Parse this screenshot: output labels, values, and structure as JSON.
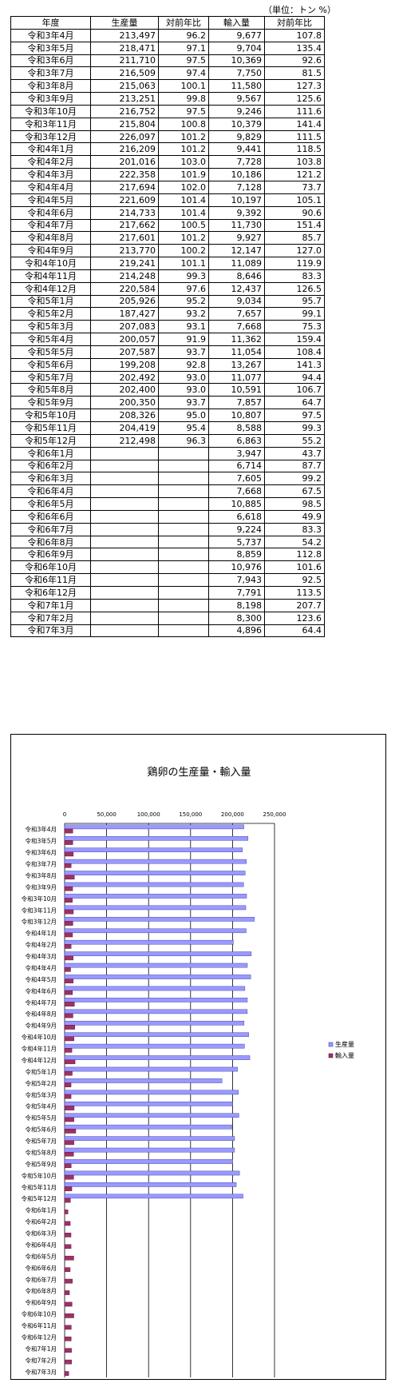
{
  "unit_note": "（単位：トン %）",
  "table": {
    "headers": [
      "年度",
      "生産量",
      "対前年比",
      "輸入量",
      "対前年比"
    ],
    "rows": [
      [
        "令和3年4月",
        "213,497",
        "96.2",
        "9,677",
        "107.8"
      ],
      [
        "令和3年5月",
        "218,471",
        "97.1",
        "9,704",
        "135.4"
      ],
      [
        "令和3年6月",
        "211,710",
        "97.5",
        "10,369",
        "92.6"
      ],
      [
        "令和3年7月",
        "216,509",
        "97.4",
        "7,750",
        "81.5"
      ],
      [
        "令和3年8月",
        "215,063",
        "100.1",
        "11,580",
        "127.3"
      ],
      [
        "令和3年9月",
        "213,251",
        "99.8",
        "9,567",
        "125.6"
      ],
      [
        "令和3年10月",
        "216,752",
        "97.5",
        "9,246",
        "111.6"
      ],
      [
        "令和3年11月",
        "215,804",
        "100.8",
        "10,379",
        "141.4"
      ],
      [
        "令和3年12月",
        "226,097",
        "101.2",
        "9,829",
        "111.5"
      ],
      [
        "令和4年1月",
        "216,209",
        "101.2",
        "9,441",
        "118.5"
      ],
      [
        "令和4年2月",
        "201,016",
        "103.0",
        "7,728",
        "103.8"
      ],
      [
        "令和4年3月",
        "222,358",
        "101.9",
        "10,186",
        "121.2"
      ],
      [
        "令和4年4月",
        "217,694",
        "102.0",
        "7,128",
        "73.7"
      ],
      [
        "令和4年5月",
        "221,609",
        "101.4",
        "10,197",
        "105.1"
      ],
      [
        "令和4年6月",
        "214,733",
        "101.4",
        "9,392",
        "90.6"
      ],
      [
        "令和4年7月",
        "217,662",
        "100.5",
        "11,730",
        "151.4"
      ],
      [
        "令和4年8月",
        "217,601",
        "101.2",
        "9,927",
        "85.7"
      ],
      [
        "令和4年9月",
        "213,770",
        "100.2",
        "12,147",
        "127.0"
      ],
      [
        "令和4年10月",
        "219,241",
        "101.1",
        "11,089",
        "119.9"
      ],
      [
        "令和4年11月",
        "214,248",
        "99.3",
        "8,646",
        "83.3"
      ],
      [
        "令和4年12月",
        "220,584",
        "97.6",
        "12,437",
        "126.5"
      ],
      [
        "令和5年1月",
        "205,926",
        "95.2",
        "9,034",
        "95.7"
      ],
      [
        "令和5年2月",
        "187,427",
        "93.2",
        "7,657",
        "99.1"
      ],
      [
        "令和5年3月",
        "207,083",
        "93.1",
        "7,668",
        "75.3"
      ],
      [
        "令和5年4月",
        "200,057",
        "91.9",
        "11,362",
        "159.4"
      ],
      [
        "令和5年5月",
        "207,587",
        "93.7",
        "11,054",
        "108.4"
      ],
      [
        "令和5年6月",
        "199,208",
        "92.8",
        "13,267",
        "141.3"
      ],
      [
        "令和5年7月",
        "202,492",
        "93.0",
        "11,077",
        "94.4"
      ],
      [
        "令和5年8月",
        "202,400",
        "93.0",
        "10,591",
        "106.7"
      ],
      [
        "令和5年9月",
        "200,350",
        "93.7",
        "7,857",
        "64.7"
      ],
      [
        "令和5年10月",
        "208,326",
        "95.0",
        "10,807",
        "97.5"
      ],
      [
        "令和5年11月",
        "204,419",
        "95.4",
        "8,588",
        "99.3"
      ],
      [
        "令和5年12月",
        "212,498",
        "96.3",
        "6,863",
        "55.2"
      ],
      [
        "令和6年1月",
        "",
        "",
        "3,947",
        "43.7"
      ],
      [
        "令和6年2月",
        "",
        "",
        "6,714",
        "87.7"
      ],
      [
        "令和6年3月",
        "",
        "",
        "7,605",
        "99.2"
      ],
      [
        "令和6年4月",
        "",
        "",
        "7,668",
        "67.5"
      ],
      [
        "令和6年5月",
        "",
        "",
        "10,885",
        "98.5"
      ],
      [
        "令和6年6月",
        "",
        "",
        "6,618",
        "49.9"
      ],
      [
        "令和6年7月",
        "",
        "",
        "9,224",
        "83.3"
      ],
      [
        "令和6年8月",
        "",
        "",
        "5,737",
        "54.2"
      ],
      [
        "令和6年9月",
        "",
        "",
        "8,859",
        "112.8"
      ],
      [
        "令和6年10月",
        "",
        "",
        "10,976",
        "101.6"
      ],
      [
        "令和6年11月",
        "",
        "",
        "7,943",
        "92.5"
      ],
      [
        "令和6年12月",
        "",
        "",
        "7,791",
        "113.5"
      ],
      [
        "令和7年1月",
        "",
        "",
        "8,198",
        "207.7"
      ],
      [
        "令和7年2月",
        "",
        "",
        "8,300",
        "123.6"
      ],
      [
        "令和7年3月",
        "",
        "",
        "4,896",
        "64.4"
      ]
    ]
  },
  "chart_data": {
    "type": "bar",
    "orientation": "horizontal",
    "title": "鶏卵の生産量・輸入量",
    "xlabel": "",
    "ylabel": "",
    "xlim": [
      0,
      250000
    ],
    "x_ticks": [
      "0",
      "50,000",
      "100,000",
      "150,000",
      "200,000",
      "250,000"
    ],
    "x_tick_values": [
      0,
      50000,
      100000,
      150000,
      200000,
      250000
    ],
    "x_axis_position": "top",
    "grid": "vertical",
    "legend": "right",
    "categories": [
      "令和3年4月",
      "令和3年5月",
      "令和3年6月",
      "令和3年7月",
      "令和3年8月",
      "令和3年9月",
      "令和3年10月",
      "令和3年11月",
      "令和3年12月",
      "令和4年1月",
      "令和4年2月",
      "令和4年3月",
      "令和4年4月",
      "令和4年5月",
      "令和4年6月",
      "令和4年7月",
      "令和4年8月",
      "令和4年9月",
      "令和4年10月",
      "令和4年11月",
      "令和4年12月",
      "令和5年1月",
      "令和5年2月",
      "令和5年3月",
      "令和5年4月",
      "令和5年5月",
      "令和5年6月",
      "令和5年7月",
      "令和5年8月",
      "令和5年9月",
      "令和5年10月",
      "令和5年11月",
      "令和5年12月",
      "令和6年1月",
      "令和6年2月",
      "令和6年3月",
      "令和6年4月",
      "令和6年5月",
      "令和6年6月",
      "令和6年7月",
      "令和6年8月",
      "令和6年9月",
      "令和6年10月",
      "令和6年11月",
      "令和6年12月",
      "令和7年1月",
      "令和7年2月",
      "令和7年3月"
    ],
    "series": [
      {
        "name": "生産量",
        "color": "#9999ff",
        "stroke": "#333399",
        "values": [
          213497,
          218471,
          211710,
          216509,
          215063,
          213251,
          216752,
          215804,
          226097,
          216209,
          201016,
          222358,
          217694,
          221609,
          214733,
          217662,
          217601,
          213770,
          219241,
          214248,
          220584,
          205926,
          187427,
          207083,
          200057,
          207587,
          199208,
          202492,
          202400,
          200350,
          208326,
          204419,
          212498,
          null,
          null,
          null,
          null,
          null,
          null,
          null,
          null,
          null,
          null,
          null,
          null,
          null,
          null,
          null
        ]
      },
      {
        "name": "輸入量",
        "color": "#993366",
        "stroke": "#660033",
        "values": [
          9677,
          9704,
          10369,
          7750,
          11580,
          9567,
          9246,
          10379,
          9829,
          9441,
          7728,
          10186,
          7128,
          10197,
          9392,
          11730,
          9927,
          12147,
          11089,
          8646,
          12437,
          9034,
          7657,
          7668,
          11362,
          11054,
          13267,
          11077,
          10591,
          7857,
          10807,
          8588,
          6863,
          3947,
          6714,
          7605,
          7668,
          10885,
          6618,
          9224,
          5737,
          8859,
          10976,
          7943,
          7791,
          8198,
          8300,
          4896
        ]
      }
    ]
  }
}
